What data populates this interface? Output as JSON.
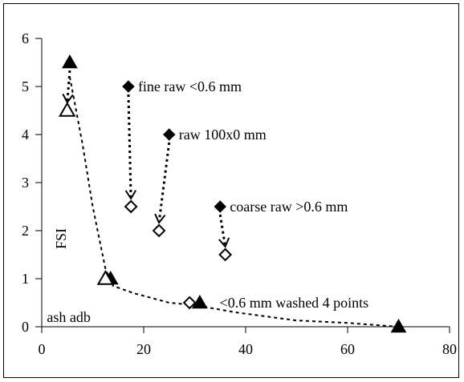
{
  "chart_data": {
    "type": "scatter",
    "ylabel": "FSI",
    "xlim": [
      0,
      80
    ],
    "ylim": [
      0,
      6
    ],
    "x_ticks": [
      "0",
      "20",
      "40",
      "60",
      "80"
    ],
    "y_ticks": [
      "0",
      "1",
      "2",
      "3",
      "4",
      "5",
      "6"
    ],
    "grid": false,
    "series": [
      {
        "marker": "filled-diamond",
        "color": "#000000",
        "points": [
          [
            17,
            5
          ],
          [
            25,
            4
          ],
          [
            35,
            2.5
          ]
        ]
      },
      {
        "marker": "open-diamond",
        "color": "#000000",
        "points": [
          [
            17.5,
            2.5
          ],
          [
            23,
            2
          ],
          [
            36,
            1.5
          ],
          [
            29,
            0.5
          ]
        ]
      },
      {
        "marker": "filled-triangle",
        "color": "#000000",
        "points": [
          [
            5.5,
            5.5
          ],
          [
            13.5,
            1
          ],
          [
            31,
            0.5
          ],
          [
            70,
            0
          ]
        ]
      },
      {
        "marker": "open-triangle",
        "color": "#000000",
        "points": [
          [
            5,
            4.5
          ],
          [
            12.5,
            1
          ]
        ]
      }
    ],
    "arrows": [
      {
        "from": [
          17,
          5
        ],
        "to": [
          17.5,
          2.5
        ]
      },
      {
        "from": [
          25,
          4
        ],
        "to": [
          23,
          2
        ]
      },
      {
        "from": [
          35,
          2.5
        ],
        "to": [
          36,
          1.5
        ]
      },
      {
        "from": [
          5.5,
          5.5
        ],
        "to": [
          5,
          4.5
        ]
      }
    ],
    "trend_line": [
      [
        5.5,
        5.2
      ],
      [
        8,
        3.8
      ],
      [
        10,
        2.5
      ],
      [
        12.5,
        1.2
      ],
      [
        14,
        0.85
      ],
      [
        18,
        0.7
      ],
      [
        25,
        0.5
      ],
      [
        30,
        0.45
      ],
      [
        38,
        0.3
      ],
      [
        50,
        0.13
      ],
      [
        60,
        0.08
      ],
      [
        70,
        0
      ]
    ],
    "annotations": [
      {
        "text": "fine raw <0.6 mm",
        "x": 17,
        "y": 5
      },
      {
        "text": "raw 100x0 mm",
        "x": 25,
        "y": 4
      },
      {
        "text": "coarse raw >0.6 mm",
        "x": 35,
        "y": 2.5
      },
      {
        "text": "<0.6 mm washed 4 points",
        "x": 33,
        "y": 0.5
      },
      {
        "text": "ash adb",
        "x": 1,
        "y": 0.2
      }
    ]
  }
}
